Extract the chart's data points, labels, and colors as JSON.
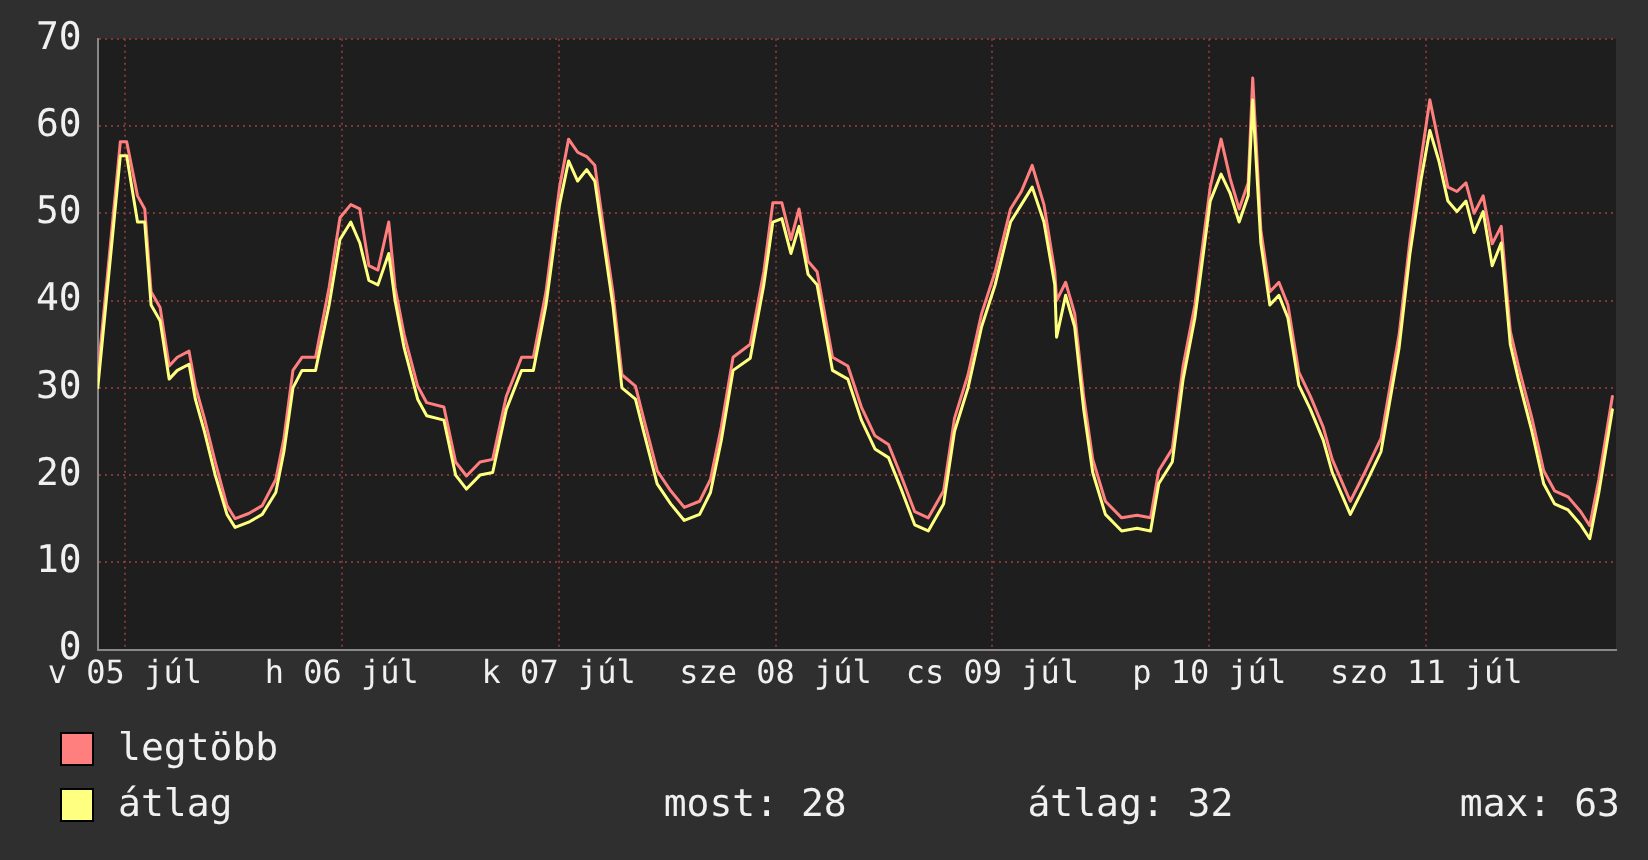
{
  "chart_data": {
    "type": "line",
    "x": [
      "--07-04T21:00",
      "--07-04T23:30",
      "--07-05T00:12",
      "--07-05T01:24",
      "--07-05T02:12",
      "--07-05T02:54",
      "--07-05T03:54",
      "--07-05T04:54",
      "--07-05T05:48",
      "--07-05T07:06",
      "--07-05T07:48",
      "--07-05T08:48",
      "--07-05T10:00",
      "--07-05T11:18",
      "--07-05T12:12",
      "--07-05T13:42",
      "--07-05T15:12",
      "--07-05T16:42",
      "--07-05T17:36",
      "--07-05T18:36",
      "--07-05T19:36",
      "--07-05T21:06",
      "--07-05T22:36",
      "--07-05T23:48",
      "--07-06T01:00",
      "--07-06T02:00",
      "--07-06T03:00",
      "--07-06T04:00",
      "--07-06T05:12",
      "--07-06T05:54",
      "--07-06T06:54",
      "--07-06T08:24",
      "--07-06T09:24",
      "--07-06T11:18",
      "--07-06T12:36",
      "--07-06T13:48",
      "--07-06T15:18",
      "--07-06T16:42",
      "--07-06T18:12",
      "--07-06T19:54",
      "--07-06T21:12",
      "--07-06T22:36",
      "--07-07T00:06",
      "--07-07T01:06",
      "--07-07T02:06",
      "--07-07T03:06",
      "--07-07T04:00",
      "--07-07T05:00",
      "--07-07T06:00",
      "--07-07T07:00",
      "--07-07T08:30",
      "--07-07T09:24",
      "--07-07T10:54",
      "--07-07T12:24",
      "--07-07T13:54",
      "--07-07T15:36",
      "--07-07T16:48",
      "--07-07T18:00",
      "--07-07T19:18",
      "--07-07T21:12",
      "--07-07T22:42",
      "--07-07T23:42",
      "--07-08T00:42",
      "--07-08T01:42",
      "--07-08T02:36",
      "--07-08T03:36",
      "--07-08T04:36",
      "--07-08T06:18",
      "--07-08T08:00",
      "--07-08T09:30",
      "--07-08T11:00",
      "--07-08T12:30",
      "--07-08T13:54",
      "--07-08T15:24",
      "--07-08T16:54",
      "--07-08T18:36",
      "--07-08T19:48",
      "--07-08T21:18",
      "--07-08T22:48",
      "--07-09T00:18",
      "--07-09T02:00",
      "--07-09T03:12",
      "--07-09T04:24",
      "--07-09T05:42",
      "--07-09T06:54",
      "--07-09T07:06",
      "--07-09T08:06",
      "--07-09T09:06",
      "--07-09T10:06",
      "--07-09T11:06",
      "--07-09T12:30",
      "--07-09T14:18",
      "--07-09T16:00",
      "--07-09T17:30",
      "--07-09T18:24",
      "--07-09T19:54",
      "--07-09T21:06",
      "--07-09T22:24",
      "--07-10T00:06",
      "--07-10T01:18",
      "--07-10T02:18",
      "--07-10T03:18",
      "--07-10T04:18",
      "--07-10T04:48",
      "--07-10T05:42",
      "--07-10T06:42",
      "--07-10T07:42",
      "--07-10T08:42",
      "--07-10T09:54",
      "--07-10T11:12",
      "--07-10T12:36",
      "--07-10T13:36",
      "--07-10T15:36",
      "--07-10T17:18",
      "--07-10T19:00",
      "--07-10T21:00",
      "--07-10T22:12",
      "--07-10T23:24",
      "--07-11T00:24",
      "--07-11T01:24",
      "--07-11T02:24",
      "--07-11T03:24",
      "--07-11T04:24",
      "--07-11T05:18",
      "--07-11T06:18",
      "--07-11T07:18",
      "--07-11T08:18",
      "--07-11T09:18",
      "--07-11T10:12",
      "--07-11T11:42",
      "--07-11T13:00",
      "--07-11T14:12",
      "--07-11T15:42",
      "--07-11T17:06",
      "--07-11T18:06",
      "--07-11T19:06",
      "--07-11T20:36"
    ],
    "series": [
      {
        "name": "legtöbb",
        "color": "#ff7f7f",
        "values": [
          31.5,
          58.2,
          58.2,
          52,
          50.5,
          41,
          39.2,
          32.5,
          33.5,
          34.2,
          30.2,
          26.5,
          21.5,
          16.5,
          15,
          15.6,
          16.5,
          19.5,
          24.2,
          32,
          33.5,
          33.5,
          41.5,
          49.5,
          51,
          50.5,
          44,
          43.5,
          49,
          41.5,
          36.1,
          30.2,
          28.3,
          27.8,
          21.5,
          19.9,
          21.5,
          21.8,
          29,
          33.5,
          33.5,
          41,
          53,
          58.5,
          57,
          56.5,
          55.5,
          48.1,
          41,
          31.5,
          30.2,
          26.5,
          20.5,
          18.2,
          16.3,
          17,
          19.5,
          25.5,
          33.5,
          35,
          43.3,
          51.2,
          51.2,
          47,
          50.5,
          44.5,
          43.3,
          33.5,
          32.5,
          27.8,
          24.5,
          23.5,
          19.9,
          15.8,
          15.1,
          18.2,
          26.5,
          31.5,
          38.5,
          43.3,
          50.5,
          52.5,
          55.5,
          51,
          43.3,
          40,
          42.1,
          38.5,
          29,
          21.8,
          17,
          15.1,
          15.4,
          15.1,
          20.5,
          23,
          32.5,
          39.5,
          53,
          58.5,
          54,
          50.5,
          53.5,
          65.5,
          48.1,
          41,
          42.1,
          39.5,
          31.8,
          29,
          25.5,
          21.8,
          17,
          20.5,
          24.2,
          36.1,
          46.9,
          56,
          63,
          58,
          53,
          52.5,
          53.5,
          50,
          52,
          46.5,
          48.5,
          36.5,
          32.5,
          26.5,
          20.5,
          18.2,
          17.5,
          15.8,
          14.2,
          19.5,
          29
        ]
      },
      {
        "name": "átlag",
        "color": "#ffff80",
        "values": [
          30,
          56.6,
          56.6,
          49,
          49,
          39.5,
          37.7,
          31,
          32,
          32.7,
          28.7,
          25,
          20,
          15.5,
          14,
          14.6,
          15.5,
          18,
          22.7,
          30,
          32,
          32,
          39.5,
          47,
          49,
          46.6,
          42.3,
          41.8,
          45.4,
          40,
          34.6,
          28.7,
          26.8,
          26.3,
          20,
          18.4,
          20,
          20.3,
          27.5,
          32,
          32,
          39.5,
          51,
          56,
          53.7,
          55,
          53.7,
          46.6,
          39.5,
          30,
          28.7,
          25,
          19,
          16.7,
          14.8,
          15.5,
          18,
          24,
          32,
          33.4,
          41.8,
          49,
          49.4,
          45.4,
          48.5,
          43,
          41.8,
          32,
          31,
          26.3,
          23,
          22,
          18.4,
          14.3,
          13.6,
          16.7,
          25,
          30,
          37,
          41.8,
          49,
          51,
          53,
          49,
          41.8,
          35.8,
          40.6,
          37,
          27.5,
          20.3,
          15.5,
          13.6,
          13.9,
          13.6,
          19,
          21.5,
          31,
          38,
          51.4,
          54.5,
          52.3,
          49,
          52,
          63,
          46.6,
          39.5,
          40.6,
          38,
          30.3,
          27.5,
          24,
          20.3,
          15.5,
          19,
          22.7,
          34.6,
          45.4,
          53.7,
          59.5,
          56,
          51.4,
          50.2,
          51.4,
          47.8,
          50.2,
          44,
          46.6,
          35,
          31,
          25,
          19,
          16.7,
          16,
          14.3,
          12.7,
          18,
          27.5
        ]
      }
    ],
    "xlim": [
      "--07-04T21:00",
      "--07-11T21:00"
    ],
    "xticks": [
      {
        "value": "--07-05T00:00",
        "label": "v 05 júl"
      },
      {
        "value": "--07-06T00:00",
        "label": "h 06 júl"
      },
      {
        "value": "--07-07T00:00",
        "label": "k 07 júl"
      },
      {
        "value": "--07-08T00:00",
        "label": "sze 08 júl"
      },
      {
        "value": "--07-09T00:00",
        "label": "cs 09 júl"
      },
      {
        "value": "--07-10T00:00",
        "label": "p 10 júl"
      },
      {
        "value": "--07-11T00:00",
        "label": "szo 11 júl"
      }
    ],
    "ylim": [
      0,
      70
    ],
    "yticks": [
      0,
      10,
      20,
      30,
      40,
      50,
      60,
      70
    ],
    "grid": true,
    "legend": "bottom",
    "marker": "none",
    "line_style": "solid",
    "annotations": [
      "most: 28",
      "átlag: 32",
      "max: 63"
    ]
  }
}
